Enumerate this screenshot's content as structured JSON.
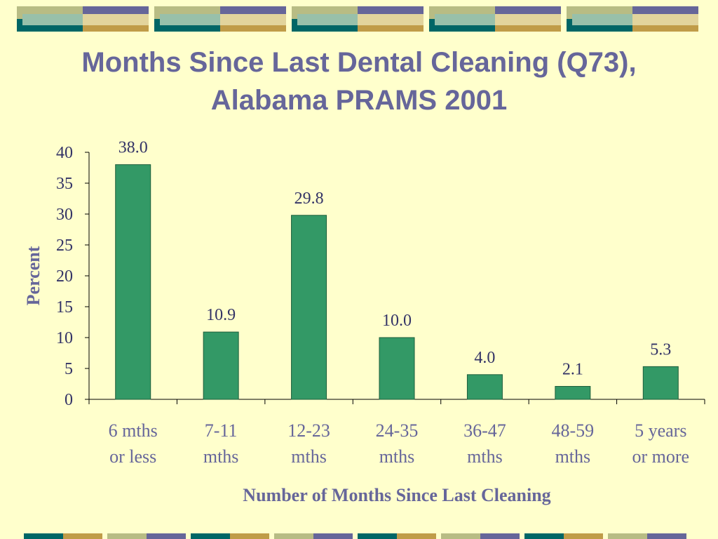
{
  "theme": {
    "background": "#FFFFCC",
    "title_color": "#66669A",
    "bar_color": "#339966",
    "text_color": "#333366",
    "deco_teal": "#006666",
    "deco_blue": "#666699",
    "deco_gold": "#C09C48",
    "deco_sage": "#B8BC84",
    "deco_light_teal": "#98C0AA",
    "deco_light_gold": "#E2D49C"
  },
  "title": {
    "line1": "Months Since Last Dental Cleaning (Q73),",
    "line2": "Alabama PRAMS 2001"
  },
  "chart_data": {
    "type": "bar",
    "categories": [
      [
        "6 mths",
        "or less"
      ],
      [
        "7-11",
        "mths"
      ],
      [
        "12-23",
        "mths"
      ],
      [
        "24-35",
        "mths"
      ],
      [
        "36-47",
        "mths"
      ],
      [
        "48-59",
        "mths"
      ],
      [
        "5 years",
        "or more"
      ]
    ],
    "values": [
      38.0,
      10.9,
      29.8,
      10.0,
      4.0,
      2.1,
      5.3
    ],
    "data_labels": [
      "38.0",
      "10.9",
      "29.8",
      "10.0",
      "4.0",
      "2.1",
      "5.3"
    ],
    "ylabel": "Percent",
    "xlabel": "Number of Months Since Last Cleaning",
    "ylim": [
      0,
      40
    ],
    "yticks": [
      0,
      5,
      10,
      15,
      20,
      25,
      30,
      35,
      40
    ],
    "grid": false,
    "legend": "none"
  }
}
